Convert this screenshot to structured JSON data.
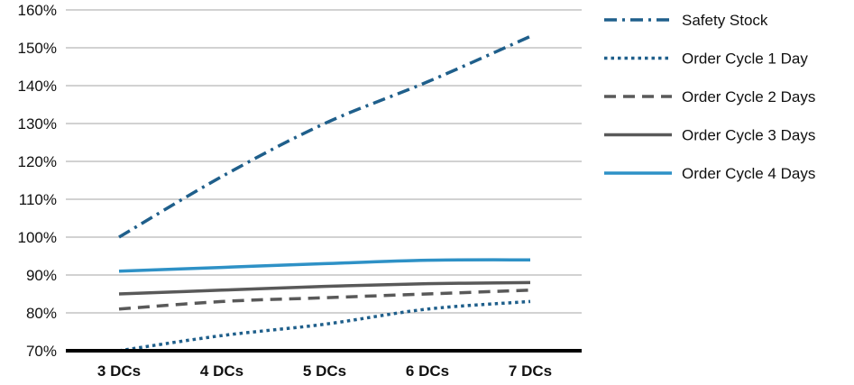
{
  "chart_data": {
    "type": "line",
    "categories": [
      "3 DCs",
      "4 DCs",
      "5 DCs",
      "6 DCs",
      "7 DCs"
    ],
    "ylim": [
      70,
      160
    ],
    "yticks": [
      "70%",
      "80%",
      "90%",
      "100%",
      "110%",
      "120%",
      "130%",
      "140%",
      "150%",
      "160%"
    ],
    "grid": true,
    "legend_position": "right",
    "series": [
      {
        "name": "Safety Stock",
        "values": [
          100,
          116,
          130,
          141,
          153
        ],
        "color": "#1f5f8b",
        "dash": "dashdot"
      },
      {
        "name": "Order Cycle 1 Day",
        "values": [
          70,
          74,
          77,
          81,
          83
        ],
        "color": "#1f5f8b",
        "dash": "dotted"
      },
      {
        "name": "Order Cycle 2 Days",
        "values": [
          81,
          83,
          84,
          85,
          86
        ],
        "color": "#595959",
        "dash": "dashed"
      },
      {
        "name": "Order Cycle 3 Days",
        "values": [
          85,
          86,
          87,
          87.7,
          88
        ],
        "color": "#595959",
        "dash": "solid"
      },
      {
        "name": "Order Cycle 4 Days",
        "values": [
          91,
          92,
          93,
          93.9,
          94
        ],
        "color": "#2e91c6",
        "dash": "solid"
      }
    ]
  }
}
